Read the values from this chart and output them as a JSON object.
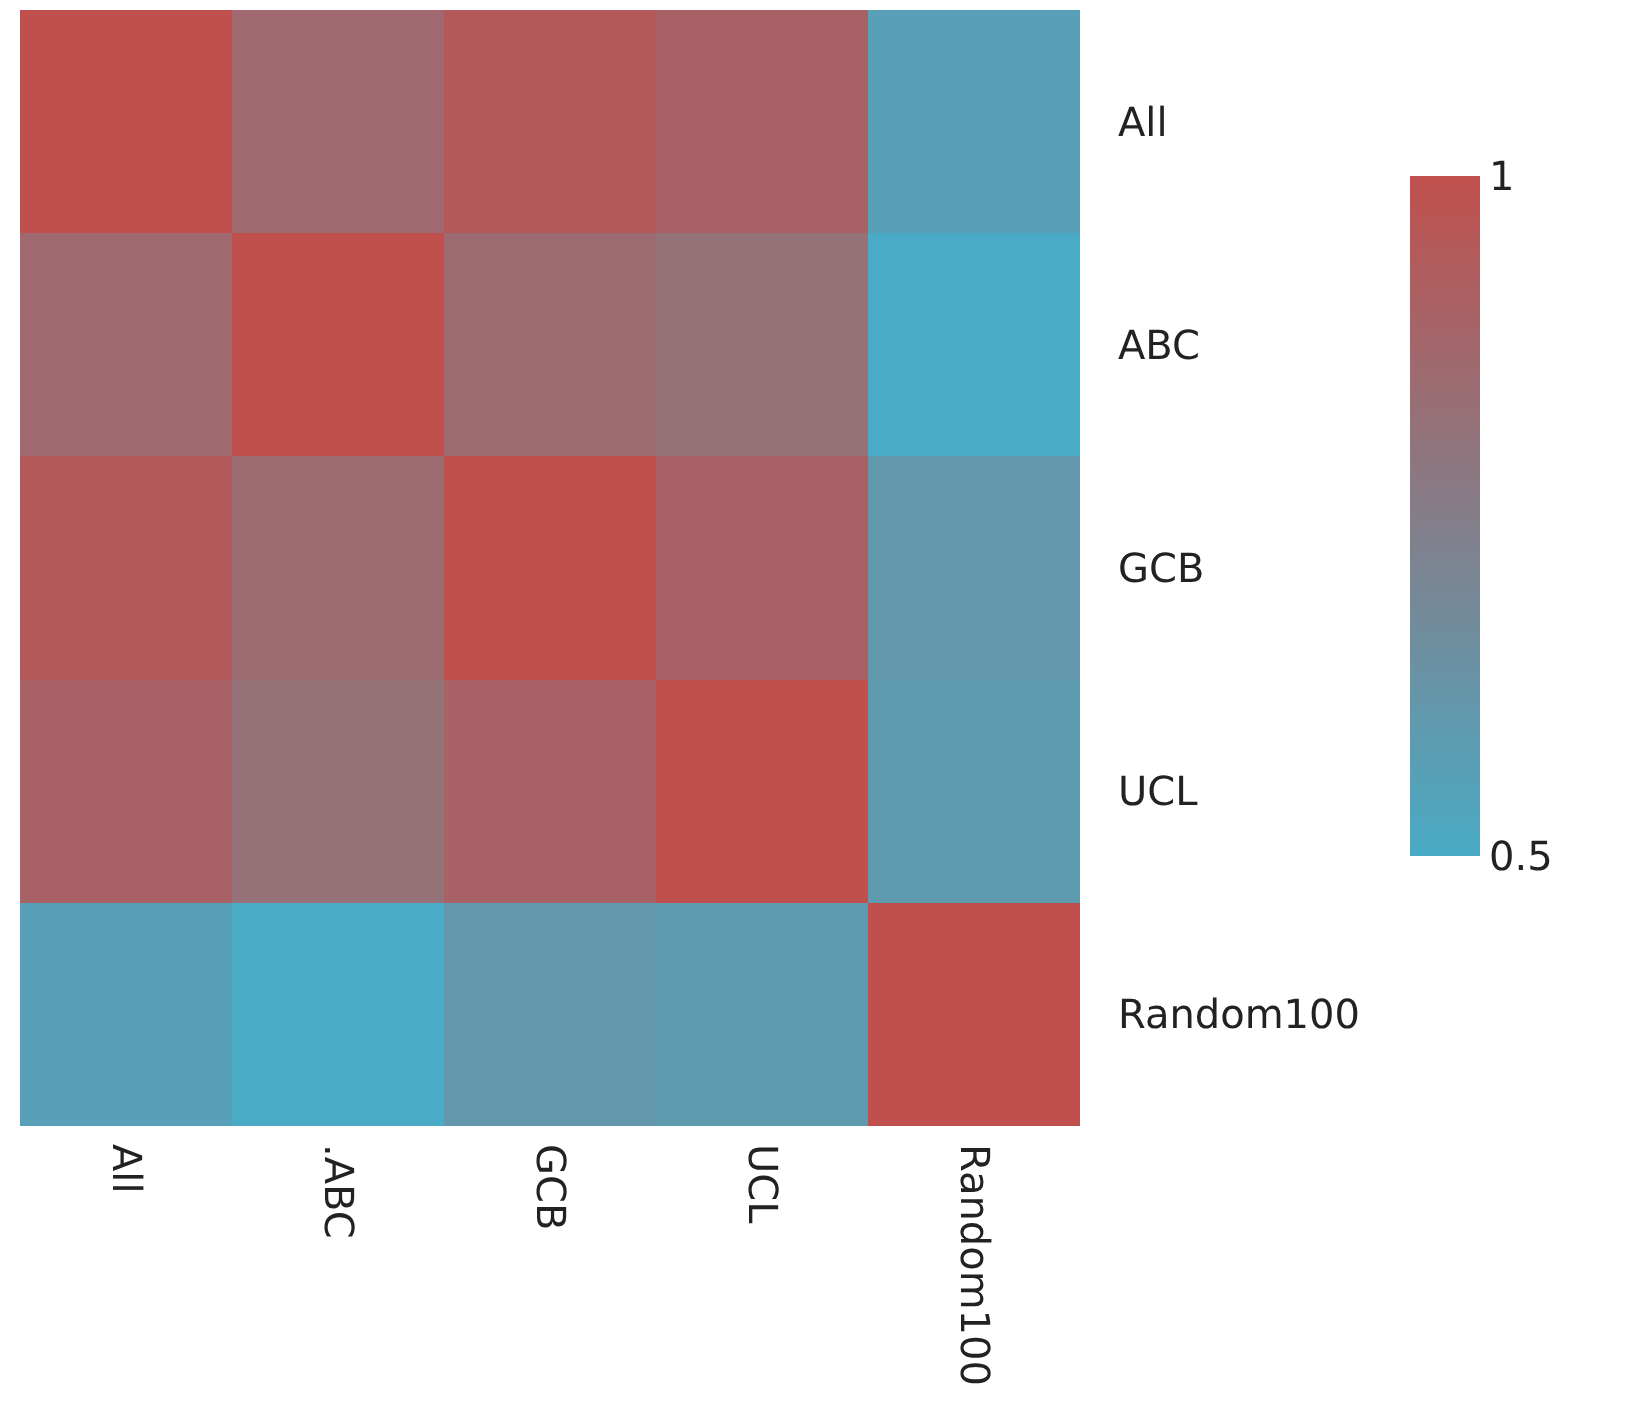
{
  "chart_data": {
    "type": "heatmap",
    "categories": [
      "All",
      ".ABC",
      "GCB",
      "UCL",
      "Random100"
    ],
    "y_categories": [
      "All",
      "ABC",
      "GCB",
      "UCL",
      "Random100"
    ],
    "cells": [
      [
        1,
        0.86,
        0.95,
        0.9,
        0.56
      ],
      [
        0.86,
        1,
        0.85,
        0.82,
        0.5
      ],
      [
        0.95,
        0.85,
        1,
        0.9,
        0.61
      ],
      [
        0.9,
        0.82,
        0.9,
        1,
        0.59
      ],
      [
        0.56,
        0.5,
        0.61,
        0.59,
        1
      ]
    ],
    "clim": [
      0.5,
      1
    ],
    "cticks": [
      0.5,
      1
    ]
  }
}
